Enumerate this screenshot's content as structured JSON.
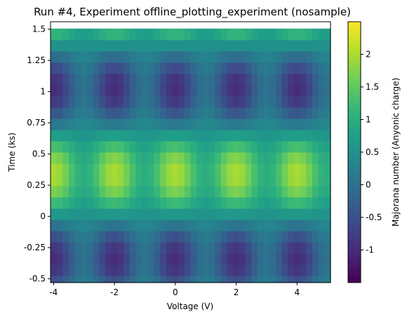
{
  "chart_data": {
    "type": "heatmap",
    "title": "Run #4, Experiment offline_plotting_experiment (nosample)",
    "xlabel": "Voltage (V)",
    "ylabel": "Time (ks)",
    "colorbar_label": "Majorana number (Anyonic charge)",
    "colormap": "viridis",
    "xlim": [
      -4.1,
      5.1
    ],
    "ylim": [
      -0.53,
      1.56
    ],
    "clim": [
      -1.5,
      2.5
    ],
    "x_ticks": [
      -4,
      -2,
      0,
      2,
      4
    ],
    "x_tick_labels": [
      "-4",
      "-2",
      "0",
      "2",
      "4"
    ],
    "y_ticks": [
      -0.5,
      -0.25,
      0,
      0.25,
      0.5,
      0.75,
      1,
      1.25,
      1.5
    ],
    "y_tick_labels": [
      "-0.5",
      "-0.25",
      "0",
      "0.25",
      "0.5",
      "0.75",
      "1",
      "1.25",
      "1.5"
    ],
    "colorbar_ticks": [
      -1,
      -0.5,
      0,
      0.5,
      1,
      1.5,
      2
    ],
    "colorbar_tick_labels": [
      "-1",
      "-0.5",
      "0",
      "0.5",
      "1",
      "1.5",
      "2"
    ],
    "x_start": -4.0,
    "x_step": 0.2,
    "x_count": 46,
    "y_start": -0.52,
    "y_step": 0.09,
    "y_count": 23,
    "value_model": "z = sin(2*pi*y*0.73) * (1 + 0.5*cos(pi*x)) + 0.5",
    "grid": false,
    "legend": "colorbar-right"
  },
  "colors": {
    "viridis": [
      "#440154",
      "#482878",
      "#3e4989",
      "#31688e",
      "#26828e",
      "#1f9e89",
      "#35b779",
      "#6ece58",
      "#b5de2b",
      "#fde725"
    ]
  }
}
